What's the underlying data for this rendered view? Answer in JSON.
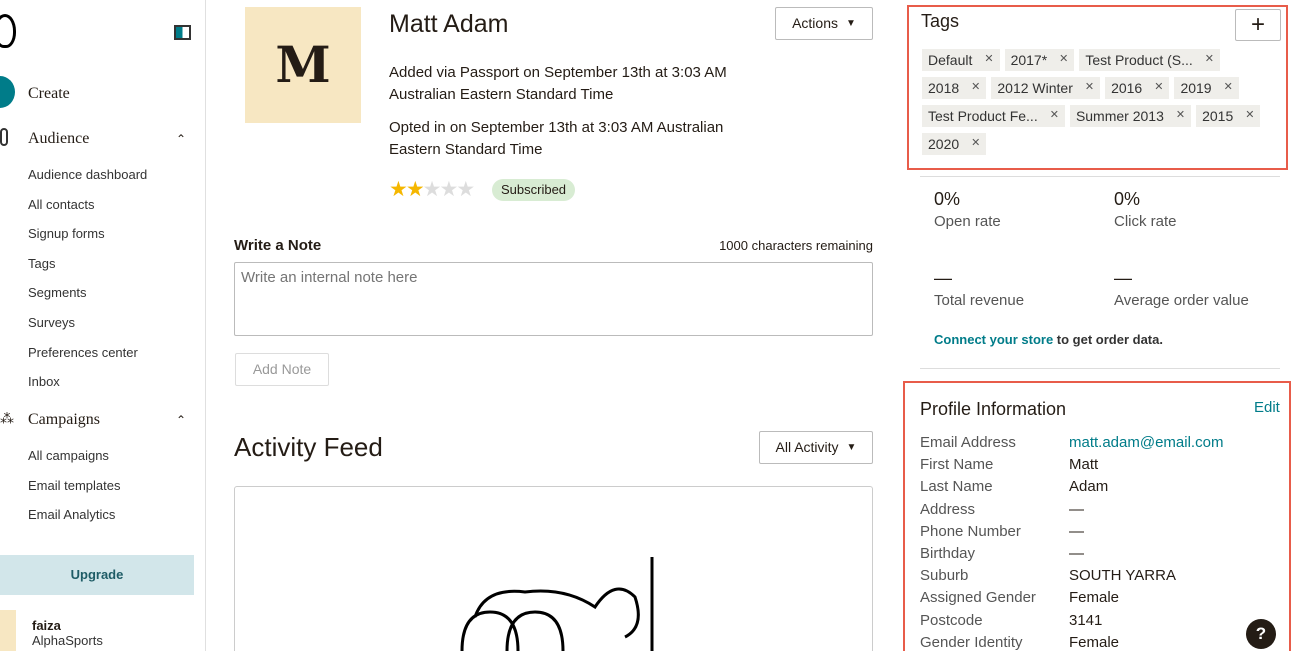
{
  "sidebar": {
    "create": "Create",
    "audience": "Audience",
    "audience_items": [
      "Audience dashboard",
      "All contacts",
      "Signup forms",
      "Tags",
      "Segments",
      "Surveys",
      "Preferences center",
      "Inbox"
    ],
    "campaigns": "Campaigns",
    "campaign_items": [
      "All campaigns",
      "Email templates",
      "Email Analytics"
    ],
    "upgrade": "Upgrade",
    "user": {
      "name": "faiza",
      "org": "AlphaSports"
    }
  },
  "contact": {
    "avatar_letter": "M",
    "name": "Matt Adam",
    "actions": "Actions",
    "added": "Added via Passport on September 13th at 3:03 AM Australian Eastern Standard Time",
    "opted": "Opted in on September 13th at 3:03 AM Australian Eastern Standard Time",
    "rating": 2,
    "rating_max": 5,
    "status": "Subscribed"
  },
  "note": {
    "title": "Write a Note",
    "remaining": "1000 characters remaining",
    "placeholder": "Write an internal note here",
    "add": "Add Note"
  },
  "feed": {
    "title": "Activity Feed",
    "filter": "All Activity"
  },
  "tags": {
    "title": "Tags",
    "add": "+",
    "items": [
      "Default",
      "2017*",
      "Test Product (S...",
      "2018",
      "2012 Winter",
      "2016",
      "2019",
      "Test Product Fe...",
      "Summer 2013",
      "2015",
      "2020"
    ]
  },
  "stats": {
    "open_value": "0%",
    "open_label": "Open rate",
    "click_value": "0%",
    "click_label": "Click rate",
    "revenue_value": "—",
    "revenue_label": "Total revenue",
    "aov_value": "—",
    "aov_label": "Average order value",
    "connect_link": "Connect your store",
    "connect_text": " to get order data."
  },
  "profile": {
    "title": "Profile Information",
    "edit": "Edit",
    "fields": [
      [
        "Email Address",
        "matt.adam@email.com"
      ],
      [
        "First Name",
        "Matt"
      ],
      [
        "Last Name",
        "Adam"
      ],
      [
        "Address",
        "—"
      ],
      [
        "Phone Number",
        "—"
      ],
      [
        "Birthday",
        "—"
      ],
      [
        "Suburb",
        "SOUTH YARRA"
      ],
      [
        "Assigned Gender",
        "Female"
      ],
      [
        "Postcode",
        "3141"
      ],
      [
        "Gender Identity",
        "Female"
      ]
    ]
  },
  "help": "?",
  "colors": {
    "accent": "#007c89",
    "highlight": "#e85c4a",
    "star": "#f5b700",
    "badge": "#d8ecd3"
  }
}
